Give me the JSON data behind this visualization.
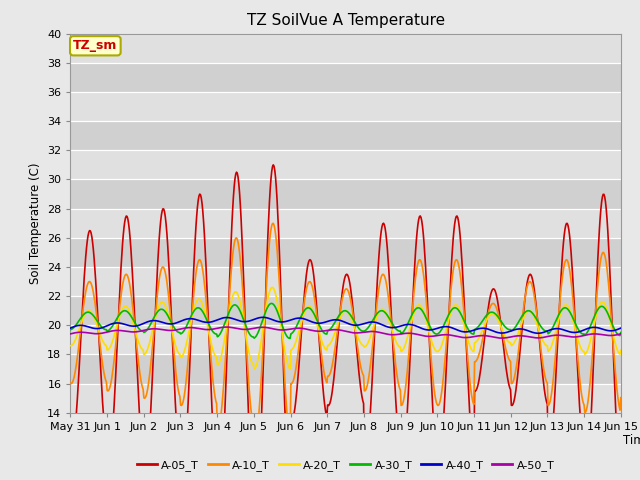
{
  "title": "TZ SoilVue A Temperature",
  "ylabel": "Soil Temperature (C)",
  "xlabel": "Time",
  "ylim": [
    14,
    40
  ],
  "yticks": [
    14,
    16,
    18,
    20,
    22,
    24,
    26,
    28,
    30,
    32,
    34,
    36,
    38,
    40
  ],
  "bg_color": "#e8e8e8",
  "plot_bg": "#f0f0f0",
  "annotation_text": "TZ_sm",
  "annotation_color": "#cc0000",
  "annotation_bg": "#ffffcc",
  "annotation_border": "#aaaa00",
  "series": [
    {
      "label": "A-05_T",
      "color": "#cc0000",
      "lw": 1.2
    },
    {
      "label": "A-10_T",
      "color": "#ff8800",
      "lw": 1.2
    },
    {
      "label": "A-20_T",
      "color": "#ffdd00",
      "lw": 1.2
    },
    {
      "label": "A-30_T",
      "color": "#00bb00",
      "lw": 1.2
    },
    {
      "label": "A-40_T",
      "color": "#0000cc",
      "lw": 1.2
    },
    {
      "label": "A-50_T",
      "color": "#aa00aa",
      "lw": 1.2
    }
  ],
  "xtick_labels": [
    "May 31",
    "Jun 1",
    "Jun 2",
    "Jun 3",
    "Jun 4",
    "Jun 5",
    "Jun 6",
    "Jun 7",
    "Jun 8",
    "Jun 9",
    "Jun 10",
    "Jun 11",
    "Jun 12",
    "Jun 13",
    "Jun 14",
    "Jun 15"
  ],
  "amp_05": [
    7.5,
    8.5,
    9.0,
    10.0,
    11.5,
    12.0,
    5.5,
    4.5,
    8.0,
    8.5,
    8.5,
    3.5,
    4.5,
    8.0,
    10.0,
    9.0
  ],
  "amp_10": [
    3.5,
    4.0,
    4.5,
    5.0,
    6.5,
    7.5,
    3.5,
    3.0,
    4.0,
    5.0,
    5.0,
    2.0,
    3.5,
    5.0,
    5.5,
    4.5
  ],
  "amp_20": [
    1.2,
    1.5,
    1.8,
    2.0,
    2.5,
    2.8,
    1.5,
    1.2,
    1.3,
    1.6,
    1.6,
    1.0,
    1.2,
    1.6,
    1.8,
    1.5
  ],
  "amp_30": [
    0.6,
    0.7,
    0.8,
    0.9,
    1.1,
    1.2,
    0.9,
    0.7,
    0.7,
    0.9,
    0.9,
    0.6,
    0.7,
    0.9,
    1.0,
    0.8
  ],
  "base_05": 19.0,
  "base_10": 19.5,
  "base_20": 19.8,
  "base_30": 20.3,
  "base_40_mean": 20.0,
  "base_40_amp": 0.4,
  "base_50_mean": 19.5,
  "base_50_amp": 0.3
}
